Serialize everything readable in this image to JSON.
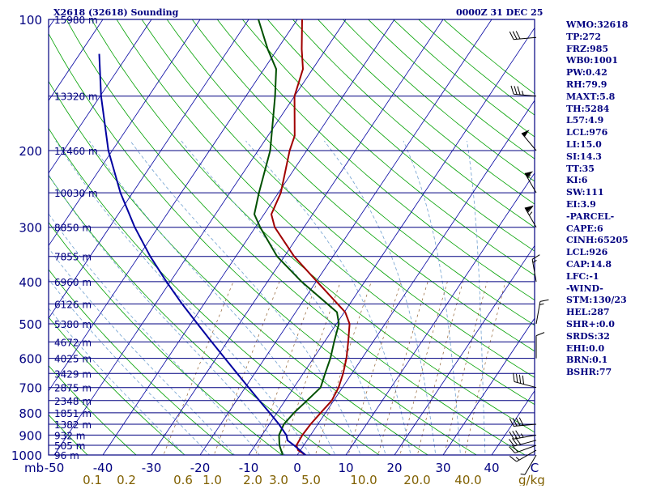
{
  "title_left": "X2618 (32618) Sounding",
  "title_right": "0000Z 31 DEC 25",
  "colors": {
    "frame": "#000080",
    "temperature": "#a00000",
    "dewpoint": "#005000",
    "parcel": "#0000a0",
    "isotherm": "#0000a0",
    "dry_adiabat": "#00a000",
    "moist_adiabat": "#70a0d0",
    "mixing_ratio": "#906030",
    "label": "#000080",
    "mixing_label": "#806000"
  },
  "chart_data": {
    "type": "skew-t log-p sounding",
    "title": "X2618 (32618) Sounding  0000Z 31 DEC 25",
    "y_axis": {
      "label": "mb",
      "scale": "log",
      "range": [
        1000,
        100
      ],
      "ticks": [
        100,
        200,
        300,
        400,
        500,
        600,
        700,
        800,
        900,
        1000
      ]
    },
    "x_axis": {
      "label": "C",
      "range": [
        -50,
        50
      ],
      "ticks": [
        -50,
        -40,
        -30,
        -20,
        -10,
        0,
        10,
        20,
        30,
        40
      ],
      "skew_degrees_per_decade": 60
    },
    "mixing_ratio_axis": {
      "label": "g/kg",
      "ticks": [
        "0.1",
        "0.2",
        "0.6",
        "1.0",
        "2.0",
        "3.0",
        "5.0",
        "10.0",
        "20.0",
        "40.0"
      ]
    },
    "height_labels": [
      {
        "p": 100,
        "text": "15980 m"
      },
      {
        "p": 150,
        "text": "13320 m"
      },
      {
        "p": 200,
        "text": "11460 m"
      },
      {
        "p": 250,
        "text": "10030 m"
      },
      {
        "p": 300,
        "text": "8850 m"
      },
      {
        "p": 350,
        "text": "7855 m"
      },
      {
        "p": 400,
        "text": "6960 m"
      },
      {
        "p": 450,
        "text": "6126 m"
      },
      {
        "p": 500,
        "text": "5380 m"
      },
      {
        "p": 550,
        "text": "4672 m"
      },
      {
        "p": 600,
        "text": "4025 m"
      },
      {
        "p": 650,
        "text": "3429 m"
      },
      {
        "p": 700,
        "text": "2875 m"
      },
      {
        "p": 750,
        "text": "2348 m"
      },
      {
        "p": 800,
        "text": "1851 m"
      },
      {
        "p": 850,
        "text": "1382 m"
      },
      {
        "p": 900,
        "text": "932 m"
      },
      {
        "p": 950,
        "text": "505 m"
      },
      {
        "p": 1000,
        "text": "96 m"
      }
    ],
    "series": [
      {
        "name": "temperature",
        "points": [
          {
            "p": 1000,
            "t": 1.7
          },
          {
            "p": 975,
            "t": -0.5
          },
          {
            "p": 950,
            "t": -1.5
          },
          {
            "p": 900,
            "t": -1.7
          },
          {
            "p": 850,
            "t": -1.5
          },
          {
            "p": 800,
            "t": -1.0
          },
          {
            "p": 750,
            "t": -0.4
          },
          {
            "p": 700,
            "t": -0.8
          },
          {
            "p": 650,
            "t": -1.8
          },
          {
            "p": 600,
            "t": -3.2
          },
          {
            "p": 550,
            "t": -5.1
          },
          {
            "p": 500,
            "t": -7.3
          },
          {
            "p": 470,
            "t": -9.8
          },
          {
            "p": 400,
            "t": -19.8
          },
          {
            "p": 350,
            "t": -28.0
          },
          {
            "p": 300,
            "t": -36.0
          },
          {
            "p": 280,
            "t": -38.5
          },
          {
            "p": 250,
            "t": -39.5
          },
          {
            "p": 200,
            "t": -43.5
          },
          {
            "p": 185,
            "t": -44.5
          },
          {
            "p": 150,
            "t": -50.0
          },
          {
            "p": 130,
            "t": -52.0
          },
          {
            "p": 117,
            "t": -55.0
          },
          {
            "p": 100,
            "t": -59.0
          }
        ]
      },
      {
        "name": "dewpoint",
        "points": [
          {
            "p": 1000,
            "t": -3.0
          },
          {
            "p": 950,
            "t": -5.0
          },
          {
            "p": 900,
            "t": -6.5
          },
          {
            "p": 850,
            "t": -7.0
          },
          {
            "p": 800,
            "t": -6.5
          },
          {
            "p": 750,
            "t": -5.5
          },
          {
            "p": 700,
            "t": -4.5
          },
          {
            "p": 650,
            "t": -5.5
          },
          {
            "p": 600,
            "t": -6.5
          },
          {
            "p": 550,
            "t": -8.0
          },
          {
            "p": 500,
            "t": -9.5
          },
          {
            "p": 470,
            "t": -11.5
          },
          {
            "p": 400,
            "t": -23.0
          },
          {
            "p": 350,
            "t": -31.5
          },
          {
            "p": 300,
            "t": -39.0
          },
          {
            "p": 280,
            "t": -42.0
          },
          {
            "p": 250,
            "t": -44.0
          },
          {
            "p": 200,
            "t": -47.5
          },
          {
            "p": 150,
            "t": -54.0
          },
          {
            "p": 130,
            "t": -57.5
          },
          {
            "p": 117,
            "t": -62.0
          },
          {
            "p": 100,
            "t": -68.0
          }
        ]
      },
      {
        "name": "parcel",
        "points": [
          {
            "p": 1000,
            "t": 1.7
          },
          {
            "p": 950,
            "t": -2.0
          },
          {
            "p": 926,
            "t": -4.0
          },
          {
            "p": 900,
            "t": -5.0
          },
          {
            "p": 850,
            "t": -8.0
          },
          {
            "p": 800,
            "t": -11.5
          },
          {
            "p": 750,
            "t": -15.3
          },
          {
            "p": 700,
            "t": -19.3
          },
          {
            "p": 650,
            "t": -23.6
          },
          {
            "p": 600,
            "t": -28.2
          },
          {
            "p": 550,
            "t": -33.2
          },
          {
            "p": 500,
            "t": -38.6
          },
          {
            "p": 450,
            "t": -44.5
          },
          {
            "p": 400,
            "t": -50.8
          },
          {
            "p": 350,
            "t": -57.6
          },
          {
            "p": 300,
            "t": -64.8
          },
          {
            "p": 250,
            "t": -72.5
          },
          {
            "p": 200,
            "t": -80.8
          },
          {
            "p": 150,
            "t": -89.8
          },
          {
            "p": 120,
            "t": -96.0
          }
        ]
      }
    ],
    "winds": [
      {
        "p": 1000,
        "dir": 210,
        "kt": 5
      },
      {
        "p": 975,
        "dir": 240,
        "kt": 15
      },
      {
        "p": 950,
        "dir": 250,
        "kt": 20
      },
      {
        "p": 925,
        "dir": 255,
        "kt": 30
      },
      {
        "p": 900,
        "dir": 260,
        "kt": 35
      },
      {
        "p": 850,
        "dir": 265,
        "kt": 40
      },
      {
        "p": 700,
        "dir": 285,
        "kt": 40
      },
      {
        "p": 600,
        "dir": 0,
        "kt": 10
      },
      {
        "p": 500,
        "dir": 10,
        "kt": 15
      },
      {
        "p": 400,
        "dir": 350,
        "kt": 15
      },
      {
        "p": 300,
        "dir": 330,
        "kt": 65
      },
      {
        "p": 250,
        "dir": 330,
        "kt": 55
      },
      {
        "p": 200,
        "dir": 320,
        "kt": 50
      },
      {
        "p": 150,
        "dir": 275,
        "kt": 35
      },
      {
        "p": 110,
        "dir": 265,
        "kt": 30
      }
    ]
  },
  "indices": [
    "WMO:32618",
    "TP:272",
    "FRZ:985",
    "WB0:1001",
    "PW:0.42",
    "RH:79.9",
    "MAXT:5.8",
    "TH:5284",
    "L57:4.9",
    "LCL:976",
    "LI:15.0",
    "SI:14.3",
    "TT:35",
    "KI:6",
    "SW:111",
    "EI:3.9",
    "-PARCEL-",
    "CAPE:6",
    "CINH:65205",
    "LCL:926",
    "CAP:14.8",
    "LFC:-1",
    "-WIND-",
    "STM:130/23",
    "HEL:287",
    "SHR+:0.0",
    "SRDS:32",
    "EHI:0.0",
    "BRN:0.1",
    "BSHR:77"
  ]
}
